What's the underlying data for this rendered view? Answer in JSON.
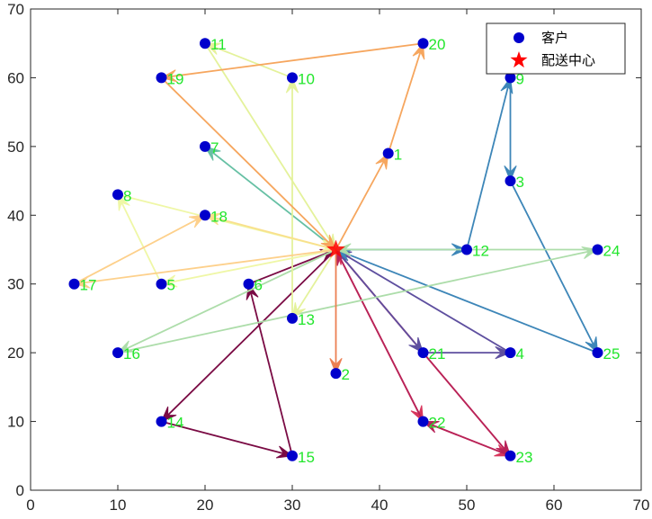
{
  "chart_data": {
    "type": "scatter",
    "title": "",
    "xlabel": "",
    "ylabel": "",
    "xlim": [
      0,
      70
    ],
    "ylim": [
      0,
      70
    ],
    "x_ticks": [
      "0",
      "10",
      "20",
      "30",
      "40",
      "50",
      "60",
      "70"
    ],
    "y_ticks": [
      "0",
      "10",
      "20",
      "30",
      "40",
      "50",
      "60",
      "70"
    ],
    "grid": false,
    "legend": {
      "position": "top-right",
      "entries": [
        {
          "label": "客户",
          "marker": "circle",
          "color": "#0000cc"
        },
        {
          "label": "配送中心",
          "marker": "star",
          "color": "#ff0000"
        }
      ]
    },
    "depot": {
      "x": 35,
      "y": 35
    },
    "customers": [
      {
        "id": "1",
        "x": 41,
        "y": 49
      },
      {
        "id": "2",
        "x": 35,
        "y": 17
      },
      {
        "id": "3",
        "x": 55,
        "y": 45
      },
      {
        "id": "4",
        "x": 55,
        "y": 20
      },
      {
        "id": "5",
        "x": 15,
        "y": 30
      },
      {
        "id": "6",
        "x": 25,
        "y": 30
      },
      {
        "id": "7",
        "x": 20,
        "y": 50
      },
      {
        "id": "8",
        "x": 10,
        "y": 43
      },
      {
        "id": "9",
        "x": 55,
        "y": 60
      },
      {
        "id": "10",
        "x": 30,
        "y": 60
      },
      {
        "id": "11",
        "x": 20,
        "y": 65
      },
      {
        "id": "12",
        "x": 50,
        "y": 35
      },
      {
        "id": "13",
        "x": 30,
        "y": 25
      },
      {
        "id": "14",
        "x": 15,
        "y": 10
      },
      {
        "id": "15",
        "x": 30,
        "y": 5
      },
      {
        "id": "16",
        "x": 10,
        "y": 20
      },
      {
        "id": "17",
        "x": 5,
        "y": 30
      },
      {
        "id": "18",
        "x": 20,
        "y": 40
      },
      {
        "id": "19",
        "x": 15,
        "y": 60
      },
      {
        "id": "20",
        "x": 45,
        "y": 65
      },
      {
        "id": "21",
        "x": 45,
        "y": 20
      },
      {
        "id": "22",
        "x": 45,
        "y": 10
      },
      {
        "id": "23",
        "x": 55,
        "y": 5
      },
      {
        "id": "24",
        "x": 65,
        "y": 35
      },
      {
        "id": "25",
        "x": 65,
        "y": 20
      }
    ],
    "routes": [
      {
        "color": "#d8365d",
        "path": [
          "D",
          "22",
          "23",
          "D"
        ]
      },
      {
        "color": "#b82358",
        "path": [
          "D",
          "23",
          "22",
          "D"
        ]
      },
      {
        "color": "#7a0b44",
        "path": [
          "D",
          "14",
          "15",
          "6",
          "D"
        ]
      },
      {
        "color": "#5e4f9f",
        "path": [
          "D",
          "21",
          "4",
          "D"
        ]
      },
      {
        "color": "#3d86b8",
        "path": [
          "D",
          "12",
          "9",
          "3",
          "25",
          "D"
        ]
      },
      {
        "color": "#adddaa",
        "path": [
          "D",
          "16",
          "24",
          "D"
        ]
      },
      {
        "color": "#66c0a4",
        "path": [
          "D",
          "7"
        ]
      },
      {
        "color": "#e4f29b",
        "path": [
          "D",
          "13",
          "10",
          "11",
          "D"
        ]
      },
      {
        "color": "#eff7a6",
        "path": [
          "D",
          "5",
          "8",
          "D"
        ]
      },
      {
        "color": "#f9e08c",
        "path": [
          "D",
          "18"
        ]
      },
      {
        "color": "#fdd08b",
        "path": [
          "D",
          "17",
          "18"
        ]
      },
      {
        "color": "#f6a65e",
        "path": [
          "D",
          "1",
          "20",
          "19",
          "D"
        ]
      },
      {
        "color": "#ec7f52",
        "path": [
          "D",
          "2"
        ]
      }
    ]
  }
}
